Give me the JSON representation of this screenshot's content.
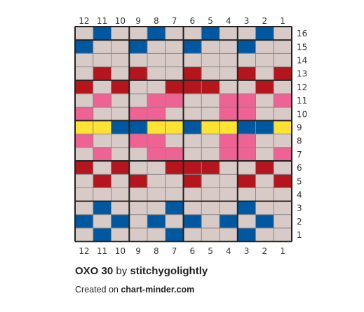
{
  "chart_data": {
    "type": "pattern-grid",
    "columns": 12,
    "rows": 16,
    "column_labels": [
      "12",
      "11",
      "10",
      "9",
      "8",
      "7",
      "6",
      "5",
      "4",
      "3",
      "2",
      "1"
    ],
    "row_labels": [
      "16",
      "15",
      "14",
      "13",
      "12",
      "11",
      "10",
      "9",
      "8",
      "7",
      "6",
      "5",
      "4",
      "3",
      "2",
      "1"
    ],
    "palette": {
      "L": "#d8cbc7",
      "B": "#0059a0",
      "R": "#b5161e",
      "P": "#ee6394",
      "Y": "#ffe333"
    },
    "grid_lines": {
      "thin": "#888888",
      "thick": "#222222",
      "major_every": 3
    },
    "cells": [
      "LBLLBLLBLLBL",
      "BLLBLLBLLBLL",
      "LLLLLLLLLLLL",
      "LRLRLLRLLRLR",
      "RLRLLRRRLLRL",
      "LPLLPPLLPPLP",
      "PLLPPLLLPPLL",
      "YYBBYYBYYBBY",
      "PLLPPLLLPPLL",
      "LPLLPPLLPPLP",
      "RLRLLRRRLLRL",
      "LRLRLLRLLRLR",
      "LLLLLLLLLLLL",
      "LBLLLBLLLBLL",
      "BLBLBLBLBLBL",
      "LBLLLBLLLBLL"
    ]
  },
  "caption": {
    "title": "OXO 30",
    "by": "by",
    "author": "stitchygolightly",
    "created": "Created on",
    "site": "chart-minder.com"
  }
}
